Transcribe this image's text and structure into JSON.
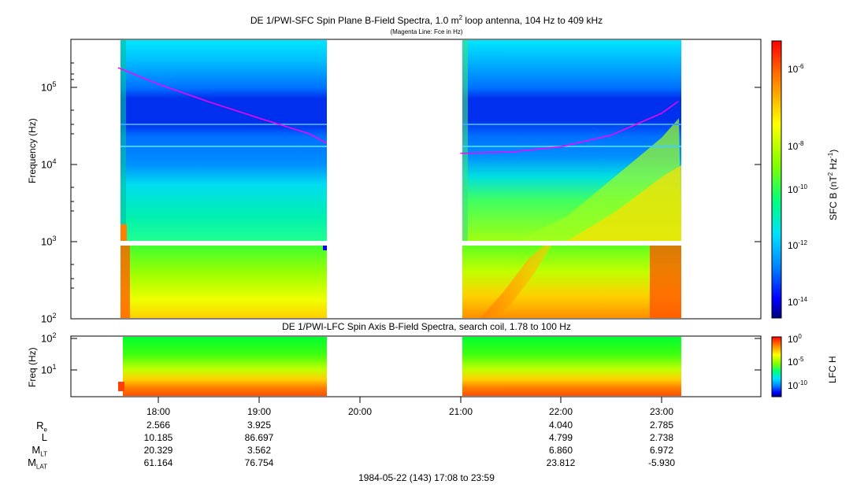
{
  "chart_data": [
    {
      "type": "heatmap",
      "title_prefix": "DE 1/PWI-SFC  Spin Plane B-Field Spectra, 1.0 m",
      "title_sup": "2",
      "title_suffix": " loop antenna, 104 Hz to 409 kHz",
      "subtitle": "(Magenta Line: Fce in Hz)",
      "ylabel": "Frequency (Hz)",
      "yscale": "log",
      "ylim": [
        100,
        409000
      ],
      "ytick_base": "10",
      "ytick_exponents": [
        "2",
        "3",
        "4",
        "5"
      ],
      "colorbar_label_prefix": "SFC B (nT",
      "colorbar_label_sup1": "2",
      "colorbar_label_mid": " Hz",
      "colorbar_label_sup2": "-1",
      "colorbar_label_suffix": ")",
      "colorbar_exponents": [
        "-6",
        "-8",
        "-10",
        "-12",
        "-14"
      ],
      "data_intervals": [
        [
          "17:36",
          "19:40"
        ],
        [
          "21:00",
          "23:10"
        ]
      ],
      "series": [
        {
          "segment": "17:36-19:40",
          "x": [
            "17:36",
            "18:00",
            "18:30",
            "19:00",
            "19:30",
            "19:40"
          ],
          "y": [
            180000,
            110000,
            65000,
            40000,
            25000,
            19000
          ]
        },
        {
          "segment": "21:00-23:10",
          "x": [
            "21:00",
            "21:30",
            "22:00",
            "22:30",
            "23:00",
            "23:10"
          ],
          "y": [
            14000,
            14500,
            17000,
            24000,
            46000,
            66000
          ]
        }
      ]
    },
    {
      "type": "heatmap",
      "title": "DE 1/PWI-LFC  Spin Axis B-Field Spectra, search coil, 1.78 to 100 Hz",
      "ylabel": "Freq (Hz)",
      "yscale": "log",
      "ylim": [
        1.78,
        100
      ],
      "ytick_base": "10",
      "ytick_exponents": [
        "2",
        "1"
      ],
      "colorbar_label": "LFC H",
      "colorbar_exponents": [
        "0",
        "-5",
        "-10"
      ],
      "data_intervals": [
        [
          "17:36",
          "19:40"
        ],
        [
          "21:00",
          "23:10"
        ]
      ]
    }
  ],
  "xaxis": {
    "ticks": [
      "18:00",
      "19:00",
      "20:00",
      "21:00",
      "22:00",
      "23:00"
    ]
  },
  "ephemeris": {
    "labels": [
      {
        "main": "R",
        "sub": "e"
      },
      {
        "main": "L",
        "sub": ""
      },
      {
        "main": "M",
        "sub": "LT"
      },
      {
        "main": "M",
        "sub": "LAT"
      }
    ],
    "columns": [
      {
        "time": "18:00",
        "values": [
          "2.566",
          "10.185",
          "20.329",
          "61.164"
        ]
      },
      {
        "time": "19:00",
        "values": [
          "3.925",
          "86.697",
          "3.562",
          "76.754"
        ]
      },
      {
        "time": "22:00",
        "values": [
          "4.040",
          "4.799",
          "6.860",
          "23.812"
        ]
      },
      {
        "time": "23:00",
        "values": [
          "2.785",
          "2.738",
          "6.972",
          "-5.930"
        ]
      }
    ]
  },
  "footer": "1984-05-22 (143) 17:08 to 23:59",
  "colors": {
    "colormap": [
      "#00007f",
      "#0000ff",
      "#0080ff",
      "#00e0ff",
      "#00ff80",
      "#80ff00",
      "#ffff00",
      "#ff8000",
      "#ff0000"
    ],
    "fce_line": "#ff00ff",
    "background": "#ffffff"
  }
}
